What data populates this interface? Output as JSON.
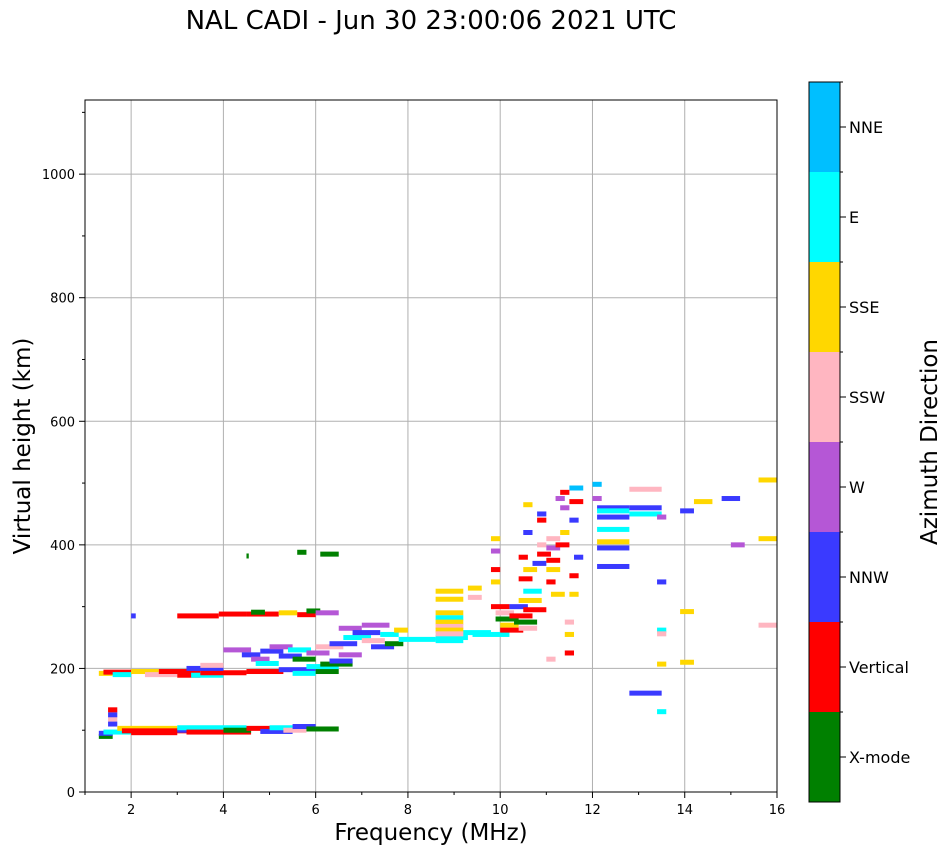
{
  "chart_data": {
    "type": "scatter",
    "title": "NAL CADI - Jun 30 23:00:06 2021 UTC",
    "xlabel": "Frequency (MHz)",
    "ylabel": "Virtual height (km)",
    "xlim": [
      1,
      16
    ],
    "ylim": [
      0,
      1120
    ],
    "xticks": [
      "2",
      "4",
      "6",
      "8",
      "10",
      "12",
      "14",
      "16"
    ],
    "yticks": [
      "0",
      "200",
      "400",
      "600",
      "800",
      "1000"
    ],
    "grid": true,
    "colorbar": {
      "label": "Azimuth Direction",
      "categories": [
        {
          "name": "X-mode",
          "color": "#008000"
        },
        {
          "name": "Vertical",
          "color": "#ff0000"
        },
        {
          "name": "NNW",
          "color": "#3a3aff"
        },
        {
          "name": "W",
          "color": "#b557d6"
        },
        {
          "name": "SSW",
          "color": "#ffb6c1"
        },
        {
          "name": "SSE",
          "color": "#ffd700"
        },
        {
          "name": "E",
          "color": "#00ffff"
        },
        {
          "name": "NNE",
          "color": "#00bfff"
        }
      ]
    },
    "traces": [
      {
        "x0": 1.3,
        "x1": 1.6,
        "y": 90,
        "c": "X-mode"
      },
      {
        "x0": 1.3,
        "x1": 1.6,
        "y": 95,
        "c": "NNW"
      },
      {
        "x0": 1.4,
        "x1": 2.0,
        "y": 97,
        "c": "E"
      },
      {
        "x0": 1.5,
        "x1": 1.7,
        "y": 110,
        "c": "NNW"
      },
      {
        "x0": 1.5,
        "x1": 1.7,
        "y": 118,
        "c": "SSW"
      },
      {
        "x0": 1.5,
        "x1": 1.7,
        "y": 125,
        "c": "NNW"
      },
      {
        "x0": 1.5,
        "x1": 1.7,
        "y": 133,
        "c": "Vertical"
      },
      {
        "x0": 1.7,
        "x1": 3.0,
        "y": 103,
        "c": "SSE"
      },
      {
        "x0": 1.8,
        "x1": 3.2,
        "y": 99,
        "c": "Vertical"
      },
      {
        "x0": 2.0,
        "x1": 3.0,
        "y": 96,
        "c": "Vertical"
      },
      {
        "x0": 3.0,
        "x1": 4.5,
        "y": 100,
        "c": "NNW"
      },
      {
        "x0": 3.0,
        "x1": 4.5,
        "y": 104,
        "c": "E"
      },
      {
        "x0": 3.2,
        "x1": 4.6,
        "y": 97,
        "c": "Vertical"
      },
      {
        "x0": 4.0,
        "x1": 4.6,
        "y": 100,
        "c": "X-mode"
      },
      {
        "x0": 4.5,
        "x1": 5.3,
        "y": 103,
        "c": "Vertical"
      },
      {
        "x0": 4.8,
        "x1": 5.5,
        "y": 98,
        "c": "NNW"
      },
      {
        "x0": 5.0,
        "x1": 5.6,
        "y": 104,
        "c": "E"
      },
      {
        "x0": 5.3,
        "x1": 5.8,
        "y": 100,
        "c": "SSW"
      },
      {
        "x0": 5.5,
        "x1": 6.0,
        "y": 106,
        "c": "NNW"
      },
      {
        "x0": 5.8,
        "x1": 6.5,
        "y": 102,
        "c": "X-mode"
      },
      {
        "x0": 1.3,
        "x1": 1.6,
        "y": 192,
        "c": "SSE"
      },
      {
        "x0": 1.4,
        "x1": 2.0,
        "y": 194,
        "c": "Vertical"
      },
      {
        "x0": 1.6,
        "x1": 2.0,
        "y": 190,
        "c": "E"
      },
      {
        "x0": 2.0,
        "x1": 2.6,
        "y": 195,
        "c": "SSE"
      },
      {
        "x0": 2.3,
        "x1": 3.0,
        "y": 190,
        "c": "SSW"
      },
      {
        "x0": 2.6,
        "x1": 3.5,
        "y": 195,
        "c": "Vertical"
      },
      {
        "x0": 3.0,
        "x1": 3.5,
        "y": 189,
        "c": "Vertical"
      },
      {
        "x0": 3.3,
        "x1": 4.0,
        "y": 189,
        "c": "E"
      },
      {
        "x0": 3.5,
        "x1": 4.5,
        "y": 193,
        "c": "Vertical"
      },
      {
        "x0": 3.2,
        "x1": 4.0,
        "y": 200,
        "c": "NNW"
      },
      {
        "x0": 3.5,
        "x1": 4.0,
        "y": 205,
        "c": "SSW"
      },
      {
        "x0": 4.5,
        "x1": 5.3,
        "y": 195,
        "c": "Vertical"
      },
      {
        "x0": 5.2,
        "x1": 6.0,
        "y": 198,
        "c": "NNW"
      },
      {
        "x0": 5.5,
        "x1": 6.0,
        "y": 192,
        "c": "E"
      },
      {
        "x0": 6.0,
        "x1": 6.5,
        "y": 195,
        "c": "X-mode"
      },
      {
        "x0": 5.8,
        "x1": 6.5,
        "y": 203,
        "c": "E"
      },
      {
        "x0": 6.1,
        "x1": 6.8,
        "y": 207,
        "c": "X-mode"
      },
      {
        "x0": 6.3,
        "x1": 6.8,
        "y": 212,
        "c": "NNW"
      },
      {
        "x0": 4.0,
        "x1": 4.6,
        "y": 230,
        "c": "W"
      },
      {
        "x0": 4.4,
        "x1": 4.8,
        "y": 222,
        "c": "NNW"
      },
      {
        "x0": 4.6,
        "x1": 5.0,
        "y": 215,
        "c": "W"
      },
      {
        "x0": 4.7,
        "x1": 5.2,
        "y": 208,
        "c": "E"
      },
      {
        "x0": 4.8,
        "x1": 5.3,
        "y": 228,
        "c": "NNW"
      },
      {
        "x0": 5.0,
        "x1": 5.5,
        "y": 235,
        "c": "W"
      },
      {
        "x0": 5.2,
        "x1": 5.7,
        "y": 220,
        "c": "NNW"
      },
      {
        "x0": 5.4,
        "x1": 5.9,
        "y": 230,
        "c": "E"
      },
      {
        "x0": 5.5,
        "x1": 6.0,
        "y": 215,
        "c": "X-mode"
      },
      {
        "x0": 5.8,
        "x1": 6.3,
        "y": 225,
        "c": "W"
      },
      {
        "x0": 6.0,
        "x1": 6.6,
        "y": 235,
        "c": "SSW"
      },
      {
        "x0": 6.3,
        "x1": 6.9,
        "y": 240,
        "c": "NNW"
      },
      {
        "x0": 6.5,
        "x1": 7.0,
        "y": 222,
        "c": "W"
      },
      {
        "x0": 6.6,
        "x1": 7.2,
        "y": 250,
        "c": "E"
      },
      {
        "x0": 6.5,
        "x1": 7.0,
        "y": 265,
        "c": "W"
      },
      {
        "x0": 6.8,
        "x1": 7.4,
        "y": 258,
        "c": "NNW"
      },
      {
        "x0": 7.0,
        "x1": 7.5,
        "y": 245,
        "c": "SSW"
      },
      {
        "x0": 7.0,
        "x1": 7.6,
        "y": 270,
        "c": "W"
      },
      {
        "x0": 7.2,
        "x1": 7.7,
        "y": 235,
        "c": "NNW"
      },
      {
        "x0": 7.4,
        "x1": 7.8,
        "y": 255,
        "c": "E"
      },
      {
        "x0": 7.5,
        "x1": 7.9,
        "y": 240,
        "c": "X-mode"
      },
      {
        "x0": 7.7,
        "x1": 8.0,
        "y": 262,
        "c": "SSE"
      },
      {
        "x0": 7.8,
        "x1": 8.6,
        "y": 247,
        "c": "E"
      },
      {
        "x0": 8.6,
        "x1": 9.3,
        "y": 250,
        "c": "E"
      },
      {
        "x0": 9.0,
        "x1": 9.8,
        "y": 258,
        "c": "E"
      },
      {
        "x0": 9.4,
        "x1": 10.2,
        "y": 255,
        "c": "E"
      },
      {
        "x0": 2.0,
        "x1": 2.1,
        "y": 285,
        "c": "NNW"
      },
      {
        "x0": 3.0,
        "x1": 3.9,
        "y": 285,
        "c": "Vertical"
      },
      {
        "x0": 3.9,
        "x1": 4.5,
        "y": 288,
        "c": "Vertical"
      },
      {
        "x0": 4.5,
        "x1": 5.2,
        "y": 288,
        "c": "Vertical"
      },
      {
        "x0": 4.6,
        "x1": 4.9,
        "y": 291,
        "c": "X-mode"
      },
      {
        "x0": 5.2,
        "x1": 5.6,
        "y": 290,
        "c": "SSE"
      },
      {
        "x0": 5.6,
        "x1": 6.0,
        "y": 287,
        "c": "Vertical"
      },
      {
        "x0": 5.8,
        "x1": 6.1,
        "y": 293,
        "c": "X-mode"
      },
      {
        "x0": 6.0,
        "x1": 6.5,
        "y": 290,
        "c": "W"
      },
      {
        "x0": 5.6,
        "x1": 5.8,
        "y": 388,
        "c": "X-mode"
      },
      {
        "x0": 6.1,
        "x1": 6.5,
        "y": 385,
        "c": "X-mode"
      },
      {
        "x0": 4.5,
        "x1": 4.55,
        "y": 382,
        "c": "X-mode"
      },
      {
        "x0": 8.6,
        "x1": 9.2,
        "y": 325,
        "c": "SSE"
      },
      {
        "x0": 8.6,
        "x1": 9.2,
        "y": 312,
        "c": "SSE"
      },
      {
        "x0": 8.6,
        "x1": 9.2,
        "y": 290,
        "c": "SSE"
      },
      {
        "x0": 8.6,
        "x1": 9.2,
        "y": 282,
        "c": "E"
      },
      {
        "x0": 8.6,
        "x1": 9.2,
        "y": 275,
        "c": "SSE"
      },
      {
        "x0": 8.6,
        "x1": 9.2,
        "y": 268,
        "c": "SSW"
      },
      {
        "x0": 8.6,
        "x1": 9.2,
        "y": 262,
        "c": "SSE"
      },
      {
        "x0": 8.6,
        "x1": 9.2,
        "y": 256,
        "c": "SSW"
      },
      {
        "x0": 8.6,
        "x1": 9.2,
        "y": 245,
        "c": "E"
      },
      {
        "x0": 9.3,
        "x1": 9.6,
        "y": 330,
        "c": "SSE"
      },
      {
        "x0": 9.3,
        "x1": 9.6,
        "y": 315,
        "c": "SSW"
      },
      {
        "x0": 9.8,
        "x1": 10.0,
        "y": 410,
        "c": "SSE"
      },
      {
        "x0": 9.8,
        "x1": 10.0,
        "y": 390,
        "c": "W"
      },
      {
        "x0": 9.8,
        "x1": 10.0,
        "y": 360,
        "c": "Vertical"
      },
      {
        "x0": 9.8,
        "x1": 10.0,
        "y": 340,
        "c": "SSE"
      },
      {
        "x0": 9.8,
        "x1": 10.2,
        "y": 300,
        "c": "Vertical"
      },
      {
        "x0": 9.9,
        "x1": 10.3,
        "y": 290,
        "c": "SSW"
      },
      {
        "x0": 9.9,
        "x1": 10.4,
        "y": 280,
        "c": "X-mode"
      },
      {
        "x0": 10.0,
        "x1": 10.4,
        "y": 270,
        "c": "SSE"
      },
      {
        "x0": 10.0,
        "x1": 10.5,
        "y": 262,
        "c": "Vertical"
      },
      {
        "x0": 10.2,
        "x1": 10.6,
        "y": 300,
        "c": "NNW"
      },
      {
        "x0": 10.2,
        "x1": 10.7,
        "y": 285,
        "c": "Vertical"
      },
      {
        "x0": 10.3,
        "x1": 10.8,
        "y": 275,
        "c": "X-mode"
      },
      {
        "x0": 10.4,
        "x1": 10.8,
        "y": 265,
        "c": "SSW"
      },
      {
        "x0": 10.4,
        "x1": 10.9,
        "y": 310,
        "c": "SSE"
      },
      {
        "x0": 10.5,
        "x1": 11.0,
        "y": 295,
        "c": "Vertical"
      },
      {
        "x0": 10.5,
        "x1": 10.9,
        "y": 325,
        "c": "E"
      },
      {
        "x0": 10.4,
        "x1": 10.7,
        "y": 345,
        "c": "Vertical"
      },
      {
        "x0": 10.5,
        "x1": 10.8,
        "y": 360,
        "c": "SSE"
      },
      {
        "x0": 10.4,
        "x1": 10.6,
        "y": 380,
        "c": "Vertical"
      },
      {
        "x0": 10.7,
        "x1": 11.0,
        "y": 370,
        "c": "NNW"
      },
      {
        "x0": 10.8,
        "x1": 11.1,
        "y": 385,
        "c": "Vertical"
      },
      {
        "x0": 10.8,
        "x1": 11.0,
        "y": 400,
        "c": "SSW"
      },
      {
        "x0": 10.5,
        "x1": 10.7,
        "y": 420,
        "c": "NNW"
      },
      {
        "x0": 10.8,
        "x1": 11.0,
        "y": 440,
        "c": "Vertical"
      },
      {
        "x0": 10.8,
        "x1": 11.0,
        "y": 450,
        "c": "NNW"
      },
      {
        "x0": 10.5,
        "x1": 10.7,
        "y": 465,
        "c": "SSE"
      },
      {
        "x0": 11.0,
        "x1": 11.3,
        "y": 410,
        "c": "SSW"
      },
      {
        "x0": 11.0,
        "x1": 11.3,
        "y": 395,
        "c": "W"
      },
      {
        "x0": 11.0,
        "x1": 11.3,
        "y": 375,
        "c": "Vertical"
      },
      {
        "x0": 11.0,
        "x1": 11.3,
        "y": 360,
        "c": "SSE"
      },
      {
        "x0": 11.0,
        "x1": 11.2,
        "y": 340,
        "c": "Vertical"
      },
      {
        "x0": 11.1,
        "x1": 11.4,
        "y": 320,
        "c": "SSE"
      },
      {
        "x0": 11.2,
        "x1": 11.5,
        "y": 400,
        "c": "Vertical"
      },
      {
        "x0": 11.3,
        "x1": 11.5,
        "y": 420,
        "c": "SSE"
      },
      {
        "x0": 11.3,
        "x1": 11.5,
        "y": 460,
        "c": "W"
      },
      {
        "x0": 11.2,
        "x1": 11.4,
        "y": 475,
        "c": "W"
      },
      {
        "x0": 11.3,
        "x1": 11.5,
        "y": 485,
        "c": "Vertical"
      },
      {
        "x0": 11.5,
        "x1": 11.8,
        "y": 492,
        "c": "NNE"
      },
      {
        "x0": 11.5,
        "x1": 11.8,
        "y": 470,
        "c": "Vertical"
      },
      {
        "x0": 11.5,
        "x1": 11.7,
        "y": 440,
        "c": "NNW"
      },
      {
        "x0": 11.6,
        "x1": 11.8,
        "y": 380,
        "c": "NNW"
      },
      {
        "x0": 11.5,
        "x1": 11.7,
        "y": 350,
        "c": "Vertical"
      },
      {
        "x0": 11.5,
        "x1": 11.7,
        "y": 320,
        "c": "SSE"
      },
      {
        "x0": 11.4,
        "x1": 11.6,
        "y": 275,
        "c": "SSW"
      },
      {
        "x0": 11.4,
        "x1": 11.6,
        "y": 255,
        "c": "SSE"
      },
      {
        "x0": 11.4,
        "x1": 11.6,
        "y": 225,
        "c": "Vertical"
      },
      {
        "x0": 11.0,
        "x1": 11.2,
        "y": 215,
        "c": "SSW"
      },
      {
        "x0": 12.0,
        "x1": 12.2,
        "y": 498,
        "c": "NNE"
      },
      {
        "x0": 12.0,
        "x1": 12.2,
        "y": 475,
        "c": "W"
      },
      {
        "x0": 12.1,
        "x1": 12.8,
        "y": 460,
        "c": "NNW"
      },
      {
        "x0": 12.1,
        "x1": 12.8,
        "y": 455,
        "c": "E"
      },
      {
        "x0": 12.8,
        "x1": 13.5,
        "y": 460,
        "c": "NNW"
      },
      {
        "x0": 12.8,
        "x1": 13.5,
        "y": 450,
        "c": "E"
      },
      {
        "x0": 12.1,
        "x1": 12.8,
        "y": 445,
        "c": "NNW"
      },
      {
        "x0": 12.1,
        "x1": 12.8,
        "y": 425,
        "c": "E"
      },
      {
        "x0": 12.1,
        "x1": 12.8,
        "y": 405,
        "c": "SSE"
      },
      {
        "x0": 12.1,
        "x1": 12.8,
        "y": 395,
        "c": "NNW"
      },
      {
        "x0": 12.1,
        "x1": 12.8,
        "y": 365,
        "c": "NNW"
      },
      {
        "x0": 12.8,
        "x1": 13.5,
        "y": 490,
        "c": "SSW"
      },
      {
        "x0": 13.4,
        "x1": 13.6,
        "y": 445,
        "c": "W"
      },
      {
        "x0": 13.9,
        "x1": 14.2,
        "y": 455,
        "c": "NNW"
      },
      {
        "x0": 14.2,
        "x1": 14.6,
        "y": 470,
        "c": "SSE"
      },
      {
        "x0": 14.8,
        "x1": 15.2,
        "y": 475,
        "c": "NNW"
      },
      {
        "x0": 15.0,
        "x1": 15.3,
        "y": 400,
        "c": "W"
      },
      {
        "x0": 15.6,
        "x1": 16.0,
        "y": 505,
        "c": "SSE"
      },
      {
        "x0": 15.6,
        "x1": 16.0,
        "y": 410,
        "c": "SSE"
      },
      {
        "x0": 15.6,
        "x1": 16.0,
        "y": 270,
        "c": "SSW"
      },
      {
        "x0": 13.4,
        "x1": 13.6,
        "y": 340,
        "c": "NNW"
      },
      {
        "x0": 13.9,
        "x1": 14.2,
        "y": 292,
        "c": "SSE"
      },
      {
        "x0": 13.4,
        "x1": 13.6,
        "y": 262,
        "c": "E"
      },
      {
        "x0": 13.4,
        "x1": 13.6,
        "y": 256,
        "c": "SSW"
      },
      {
        "x0": 13.9,
        "x1": 14.2,
        "y": 210,
        "c": "SSE"
      },
      {
        "x0": 13.4,
        "x1": 13.6,
        "y": 207,
        "c": "SSE"
      },
      {
        "x0": 12.8,
        "x1": 13.5,
        "y": 160,
        "c": "NNW"
      },
      {
        "x0": 13.4,
        "x1": 13.6,
        "y": 130,
        "c": "E"
      }
    ]
  }
}
